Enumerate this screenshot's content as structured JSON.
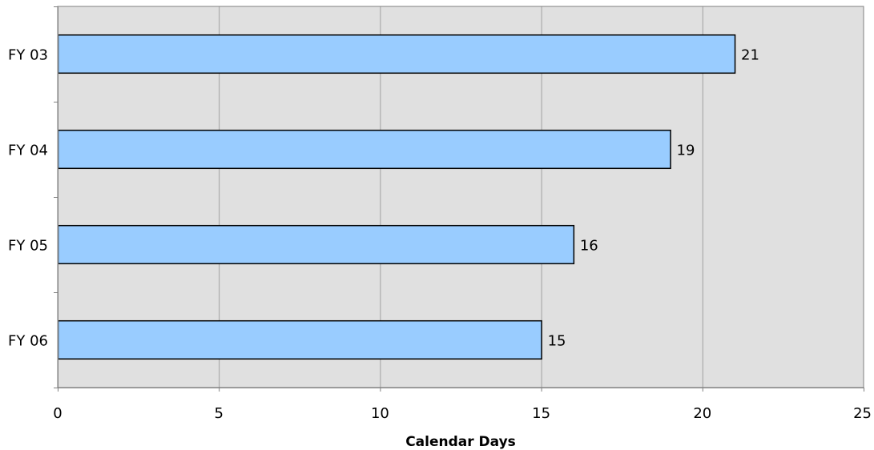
{
  "chart_data": {
    "type": "bar",
    "orientation": "horizontal",
    "categories": [
      "FY 03",
      "FY 04",
      "FY 05",
      "FY 06"
    ],
    "values": [
      21,
      19,
      16,
      15
    ],
    "data_labels": [
      "21",
      "19",
      "16",
      "15"
    ],
    "title": "",
    "xlabel": "Calendar Days",
    "ylabel": "",
    "xlim": [
      0,
      25
    ],
    "x_ticks": [
      0,
      5,
      10,
      15,
      20,
      25
    ],
    "x_tick_labels": [
      "0",
      "5",
      "10",
      "15",
      "20",
      "25"
    ],
    "grid": "vertical",
    "legend": "none",
    "colors": {
      "bar_fill": "#99ccff",
      "bar_stroke": "#000000",
      "plot_background": "#e0e0e0",
      "grid_line": "#a0a0a0",
      "plot_border": "#808080"
    }
  }
}
